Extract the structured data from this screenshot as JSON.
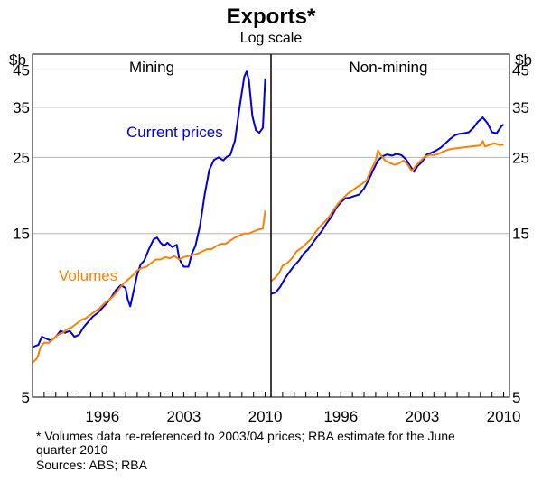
{
  "chart_data": {
    "type": "line",
    "title": "Exports*",
    "subtitle": "Log scale",
    "yscale": "log",
    "ylim": [
      5,
      50
    ],
    "yticks": [
      5,
      15,
      25,
      35,
      45
    ],
    "yunit": "$b",
    "xlim": [
      1990,
      2010.5
    ],
    "xticks": [
      1996,
      2003,
      2010
    ],
    "colors": {
      "current_prices": "#0000dd",
      "volumes": "#ff8000"
    },
    "panels": [
      {
        "name": "Mining",
        "annotations": [
          {
            "text": "Current prices",
            "series": "current_prices"
          },
          {
            "text": "Volumes",
            "series": "volumes"
          }
        ],
        "series": [
          {
            "name": "Current prices",
            "key": "current_prices",
            "points": [
              [
                1990,
                7.0
              ],
              [
                1990.5,
                7.1
              ],
              [
                1990.8,
                7.5
              ],
              [
                1991.2,
                7.4
              ],
              [
                1991.6,
                7.3
              ],
              [
                1992,
                7.5
              ],
              [
                1992.4,
                7.8
              ],
              [
                1992.8,
                7.7
              ],
              [
                1993.2,
                7.8
              ],
              [
                1993.6,
                7.5
              ],
              [
                1994,
                7.6
              ],
              [
                1994.4,
                8.0
              ],
              [
                1994.8,
                8.3
              ],
              [
                1995.2,
                8.6
              ],
              [
                1995.6,
                8.8
              ],
              [
                1996,
                9.1
              ],
              [
                1996.4,
                9.4
              ],
              [
                1996.8,
                9.8
              ],
              [
                1997.2,
                10.3
              ],
              [
                1997.6,
                10.6
              ],
              [
                1998,
                10.4
              ],
              [
                1998.2,
                9.6
              ],
              [
                1998.4,
                9.2
              ],
              [
                1998.7,
                10.2
              ],
              [
                1999,
                11.4
              ],
              [
                1999.3,
                12.2
              ],
              [
                1999.6,
                12.5
              ],
              [
                2000,
                13.5
              ],
              [
                2000.4,
                14.4
              ],
              [
                2000.7,
                14.6
              ],
              [
                2001,
                14.1
              ],
              [
                2001.3,
                13.8
              ],
              [
                2001.6,
                14.1
              ],
              [
                2002,
                13.7
              ],
              [
                2002.4,
                13.9
              ],
              [
                2002.6,
                12.7
              ],
              [
                2002.8,
                12.3
              ],
              [
                2003,
                12.0
              ],
              [
                2003.4,
                12.0
              ],
              [
                2003.7,
                13.1
              ],
              [
                2004,
                13.8
              ],
              [
                2004.4,
                15.8
              ],
              [
                2004.8,
                19.5
              ],
              [
                2005.2,
                23.0
              ],
              [
                2005.6,
                24.6
              ],
              [
                2006,
                25.0
              ],
              [
                2006.4,
                24.5
              ],
              [
                2006.7,
                25.1
              ],
              [
                2007,
                25.4
              ],
              [
                2007.4,
                28.0
              ],
              [
                2007.8,
                35.0
              ],
              [
                2008.2,
                43.0
              ],
              [
                2008.4,
                44.5
              ],
              [
                2008.6,
                42.0
              ],
              [
                2008.9,
                33.0
              ],
              [
                2009.2,
                30.0
              ],
              [
                2009.5,
                29.5
              ],
              [
                2009.8,
                30.5
              ],
              [
                2010,
                42.5
              ]
            ]
          },
          {
            "name": "Volumes",
            "key": "volumes",
            "points": [
              [
                1990,
                6.3
              ],
              [
                1990.4,
                6.5
              ],
              [
                1990.7,
                7.0
              ],
              [
                1991,
                7.2
              ],
              [
                1991.4,
                7.2
              ],
              [
                1991.8,
                7.4
              ],
              [
                1992.2,
                7.6
              ],
              [
                1992.6,
                7.7
              ],
              [
                1993,
                7.9
              ],
              [
                1993.4,
                8.0
              ],
              [
                1993.8,
                8.2
              ],
              [
                1994.2,
                8.4
              ],
              [
                1994.6,
                8.5
              ],
              [
                1995,
                8.7
              ],
              [
                1995.4,
                8.9
              ],
              [
                1995.8,
                9.1
              ],
              [
                1996.2,
                9.4
              ],
              [
                1996.6,
                9.6
              ],
              [
                1997,
                9.9
              ],
              [
                1997.4,
                10.3
              ],
              [
                1997.8,
                10.7
              ],
              [
                1998.2,
                11.0
              ],
              [
                1998.6,
                11.3
              ],
              [
                1999,
                11.7
              ],
              [
                1999.4,
                11.9
              ],
              [
                1999.8,
                12.0
              ],
              [
                2000.2,
                12.3
              ],
              [
                2000.6,
                12.6
              ],
              [
                2001,
                12.6
              ],
              [
                2001.4,
                12.8
              ],
              [
                2001.8,
                12.7
              ],
              [
                2002.2,
                12.9
              ],
              [
                2002.6,
                12.6
              ],
              [
                2003,
                12.8
              ],
              [
                2003.4,
                12.9
              ],
              [
                2003.8,
                13.0
              ],
              [
                2004.2,
                13.1
              ],
              [
                2004.6,
                13.3
              ],
              [
                2005,
                13.5
              ],
              [
                2005.4,
                13.5
              ],
              [
                2005.8,
                13.8
              ],
              [
                2006.2,
                14.0
              ],
              [
                2006.6,
                14.0
              ],
              [
                2007,
                14.3
              ],
              [
                2007.4,
                14.6
              ],
              [
                2007.8,
                14.8
              ],
              [
                2008.2,
                15.0
              ],
              [
                2008.6,
                15.0
              ],
              [
                2009,
                15.2
              ],
              [
                2009.4,
                15.4
              ],
              [
                2009.8,
                15.5
              ],
              [
                2010,
                17.5
              ]
            ]
          }
        ]
      },
      {
        "name": "Non-mining",
        "annotations": [],
        "series": [
          {
            "name": "Current prices",
            "key": "current_prices",
            "points": [
              [
                1990,
                10.0
              ],
              [
                1990.4,
                10.1
              ],
              [
                1990.8,
                10.5
              ],
              [
                1991.2,
                11.1
              ],
              [
                1991.6,
                11.6
              ],
              [
                1992,
                12.1
              ],
              [
                1992.4,
                12.5
              ],
              [
                1992.8,
                13.1
              ],
              [
                1993.2,
                13.5
              ],
              [
                1993.6,
                14.1
              ],
              [
                1994,
                14.7
              ],
              [
                1994.4,
                15.3
              ],
              [
                1994.8,
                16.1
              ],
              [
                1995.2,
                16.8
              ],
              [
                1995.6,
                17.8
              ],
              [
                1996,
                18.5
              ],
              [
                1996.4,
                19.0
              ],
              [
                1996.8,
                19.1
              ],
              [
                1997.2,
                19.3
              ],
              [
                1997.6,
                19.5
              ],
              [
                1998,
                20.3
              ],
              [
                1998.4,
                21.5
              ],
              [
                1998.8,
                23.0
              ],
              [
                1999.2,
                24.5
              ],
              [
                1999.6,
                25.2
              ],
              [
                2000,
                25.5
              ],
              [
                2000.4,
                25.3
              ],
              [
                2000.8,
                25.6
              ],
              [
                2001.2,
                25.4
              ],
              [
                2001.6,
                24.7
              ],
              [
                2002,
                23.5
              ],
              [
                2002.3,
                22.7
              ],
              [
                2002.6,
                23.6
              ],
              [
                2003,
                24.3
              ],
              [
                2003.4,
                25.5
              ],
              [
                2003.8,
                25.8
              ],
              [
                2004.2,
                26.2
              ],
              [
                2004.6,
                26.7
              ],
              [
                2005,
                27.5
              ],
              [
                2005.4,
                28.3
              ],
              [
                2005.8,
                29.0
              ],
              [
                2006.2,
                29.3
              ],
              [
                2006.6,
                29.4
              ],
              [
                2007,
                29.6
              ],
              [
                2007.4,
                30.5
              ],
              [
                2007.8,
                31.8
              ],
              [
                2008.2,
                32.7
              ],
              [
                2008.6,
                31.5
              ],
              [
                2009,
                29.6
              ],
              [
                2009.4,
                29.4
              ],
              [
                2009.8,
                30.8
              ],
              [
                2010,
                31.2
              ]
            ]
          },
          {
            "name": "Volumes",
            "key": "volumes",
            "points": [
              [
                1990,
                10.9
              ],
              [
                1990.3,
                11.1
              ],
              [
                1990.7,
                11.5
              ],
              [
                1991,
                12.1
              ],
              [
                1991.4,
                12.3
              ],
              [
                1991.8,
                12.7
              ],
              [
                1992.2,
                13.3
              ],
              [
                1992.6,
                13.6
              ],
              [
                1993,
                14.0
              ],
              [
                1993.4,
                14.4
              ],
              [
                1993.8,
                15.1
              ],
              [
                1994.2,
                15.7
              ],
              [
                1994.6,
                16.2
              ],
              [
                1995,
                16.8
              ],
              [
                1995.4,
                17.6
              ],
              [
                1995.8,
                18.4
              ],
              [
                1996.2,
                19.0
              ],
              [
                1996.6,
                19.6
              ],
              [
                1997,
                20.0
              ],
              [
                1997.4,
                20.5
              ],
              [
                1997.8,
                20.9
              ],
              [
                1998.2,
                21.4
              ],
              [
                1998.6,
                23.0
              ],
              [
                1999,
                24.5
              ],
              [
                1999.2,
                26.2
              ],
              [
                1999.4,
                25.5
              ],
              [
                1999.8,
                24.5
              ],
              [
                2000.2,
                24.1
              ],
              [
                2000.6,
                23.8
              ],
              [
                2001,
                24.0
              ],
              [
                2001.4,
                24.5
              ],
              [
                2001.8,
                23.7
              ],
              [
                2002.1,
                22.8
              ],
              [
                2002.4,
                23.5
              ],
              [
                2002.8,
                24.3
              ],
              [
                2003.2,
                25.1
              ],
              [
                2003.6,
                25.4
              ],
              [
                2004,
                25.4
              ],
              [
                2004.4,
                25.6
              ],
              [
                2004.8,
                26.0
              ],
              [
                2005.2,
                26.3
              ],
              [
                2005.6,
                26.5
              ],
              [
                2006,
                26.6
              ],
              [
                2006.4,
                26.7
              ],
              [
                2006.8,
                26.8
              ],
              [
                2007.2,
                26.9
              ],
              [
                2007.6,
                27.0
              ],
              [
                2008,
                27.1
              ],
              [
                2008.2,
                27.9
              ],
              [
                2008.4,
                26.9
              ],
              [
                2008.8,
                27.2
              ],
              [
                2009.2,
                27.5
              ],
              [
                2009.6,
                27.2
              ],
              [
                2010,
                27.2
              ]
            ]
          }
        ]
      }
    ],
    "footnotes": [
      "*   Volumes data re-referenced to 2003/04 prices; RBA estimate for the June",
      "     quarter 2010",
      "Sources: ABS; RBA"
    ]
  }
}
